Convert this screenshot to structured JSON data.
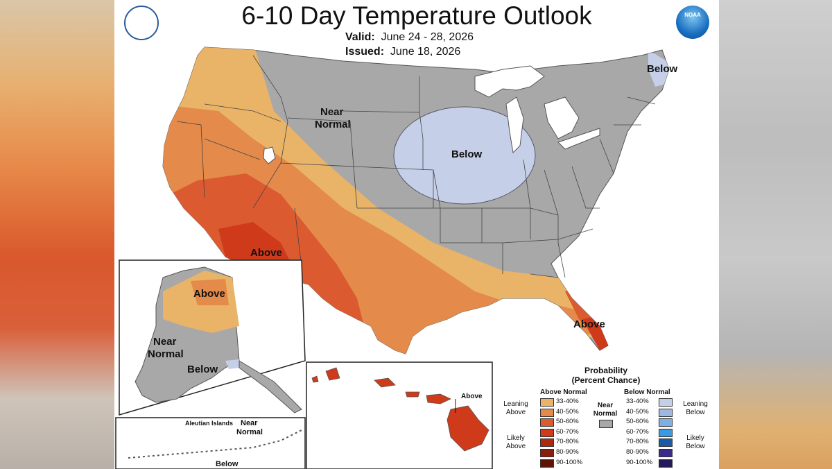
{
  "title": "6-10 Day Temperature Outlook",
  "valid_label": "Valid:",
  "valid_value": "June 24 - 28, 2026",
  "issued_label": "Issued:",
  "issued_value": "June 18, 2026",
  "logos": {
    "left": "commerce-seal-icon",
    "right": "noaa-logo-icon",
    "noaa_text": "NOAA"
  },
  "map_labels": {
    "near_normal_1": "Near",
    "near_normal_2": "Normal",
    "below_midwest": "Below",
    "below_maine": "Below",
    "above_southwest": "Above",
    "above_florida": "Above",
    "above_alaska": "Above",
    "alaska_near_1": "Near",
    "alaska_near_2": "Normal",
    "alaska_below": "Below",
    "aleutian_title": "Aleutian Islands",
    "aleutian_near_1": "Near",
    "aleutian_near_2": "Normal",
    "aleutian_below": "Below",
    "hawaii_above": "Above"
  },
  "legend": {
    "title_1": "Probability",
    "title_2": "(Percent Chance)",
    "above_header": "Above Normal",
    "below_header": "Below Normal",
    "near_1": "Near",
    "near_2": "Normal",
    "leaning_above_1": "Leaning",
    "leaning_above_2": "Above",
    "likely_above_1": "Likely",
    "likely_above_2": "Above",
    "leaning_below_1": "Leaning",
    "leaning_below_2": "Below",
    "likely_below_1": "Likely",
    "likely_below_2": "Below",
    "above_rows": [
      {
        "label": "33-40%",
        "color": "#e9b468"
      },
      {
        "label": "40-50%",
        "color": "#e48a4a"
      },
      {
        "label": "50-60%",
        "color": "#dc5a30"
      },
      {
        "label": "60-70%",
        "color": "#cf3a1a"
      },
      {
        "label": "70-80%",
        "color": "#b02810"
      },
      {
        "label": "80-90%",
        "color": "#8a1e0c"
      },
      {
        "label": "90-100%",
        "color": "#5e1406"
      }
    ],
    "below_rows": [
      {
        "label": "33-40%",
        "color": "#c5cfe8"
      },
      {
        "label": "40-50%",
        "color": "#9fb8e0"
      },
      {
        "label": "50-60%",
        "color": "#7fb0e4"
      },
      {
        "label": "60-70%",
        "color": "#3a9ae0"
      },
      {
        "label": "70-80%",
        "color": "#1a5aa8"
      },
      {
        "label": "80-90%",
        "color": "#3a2a8a"
      },
      {
        "label": "90-100%",
        "color": "#241a5a"
      }
    ],
    "near_color": "#a8a8a8"
  }
}
